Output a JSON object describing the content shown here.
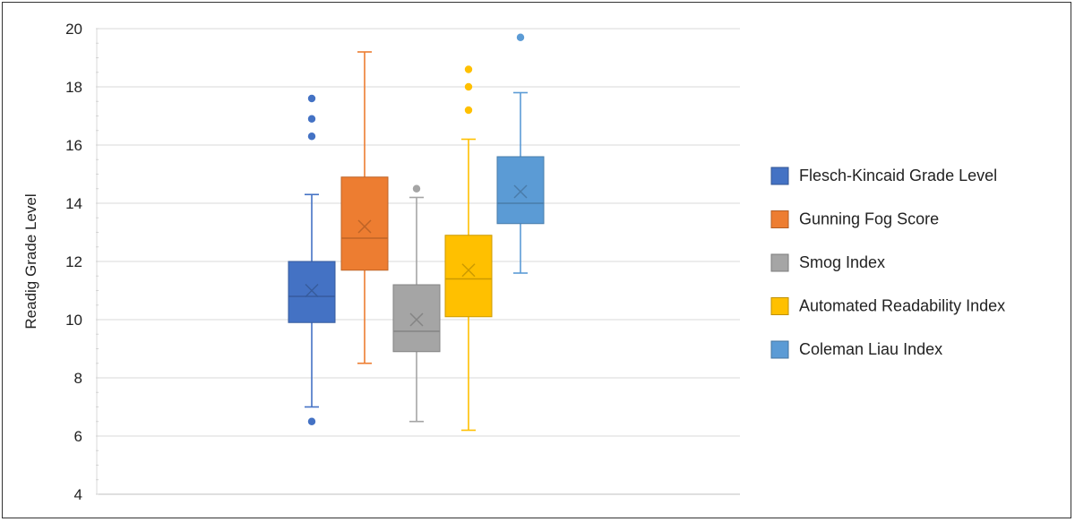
{
  "chart_data": {
    "type": "box",
    "ylabel": "Readig Grade Level",
    "ylim": [
      4,
      20
    ],
    "yticks": [
      4,
      6,
      8,
      10,
      12,
      14,
      16,
      18,
      20
    ],
    "grid": true,
    "legend_position": "right",
    "series": [
      {
        "name": "Flesch-Kincaid Grade Level",
        "color": "#4472C4",
        "min": 7.0,
        "q1": 9.9,
        "median": 10.8,
        "q3": 12.0,
        "max": 14.3,
        "mean": 11.0,
        "outliers": [
          6.5,
          16.3,
          16.9,
          17.6
        ]
      },
      {
        "name": "Gunning Fog Score",
        "color": "#ED7D31",
        "min": 8.5,
        "q1": 11.7,
        "median": 12.8,
        "q3": 14.9,
        "max": 19.2,
        "mean": 13.2,
        "outliers": []
      },
      {
        "name": "Smog Index",
        "color": "#A5A5A5",
        "min": 6.5,
        "q1": 8.9,
        "median": 9.6,
        "q3": 11.2,
        "max": 14.2,
        "mean": 10.0,
        "outliers": [
          14.5
        ]
      },
      {
        "name": "Automated Readability Index",
        "color": "#FFC000",
        "min": 6.2,
        "q1": 10.1,
        "median": 11.4,
        "q3": 12.9,
        "max": 16.2,
        "mean": 11.7,
        "outliers": [
          17.2,
          18.0,
          18.6
        ]
      },
      {
        "name": "Coleman Liau Index",
        "color": "#5B9BD5",
        "min": 11.6,
        "q1": 13.3,
        "median": 14.0,
        "q3": 15.6,
        "max": 17.8,
        "mean": 14.4,
        "outliers": [
          19.7
        ]
      }
    ]
  }
}
